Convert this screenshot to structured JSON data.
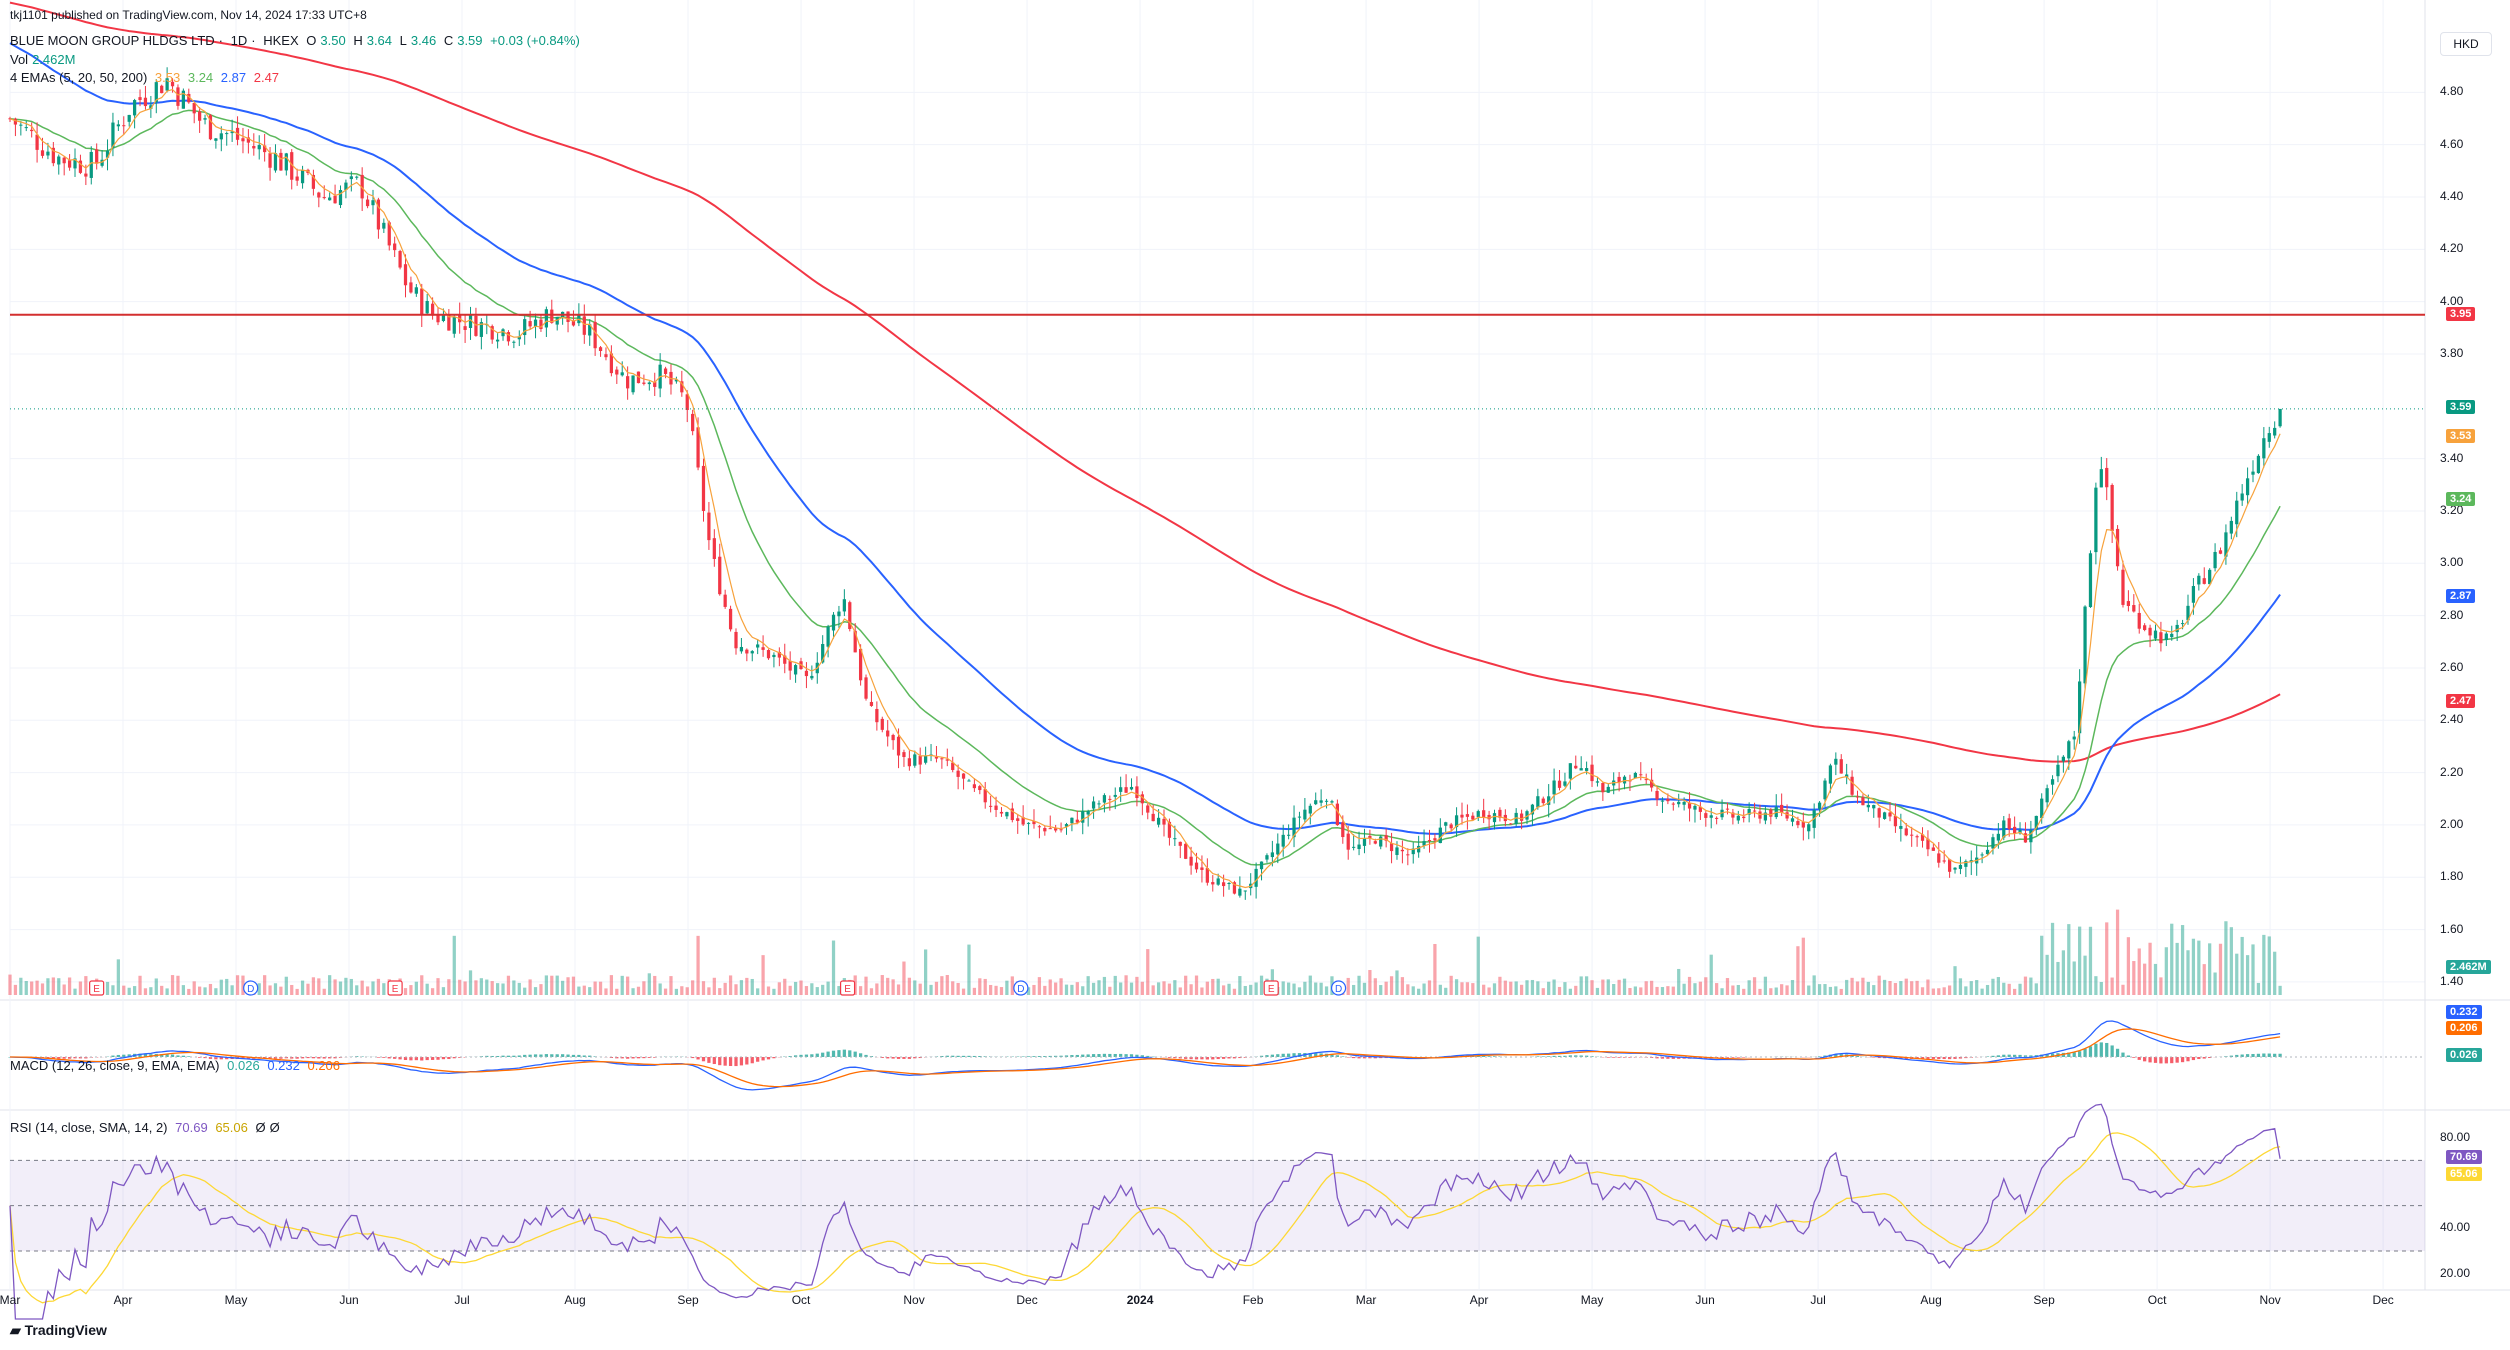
{
  "header": {
    "publisher": "tkj1101 published on TradingView.com, Nov 14, 2024 17:33 UTC+8",
    "symbol": "BLUE MOON GROUP HLDGS LTD",
    "interval": "1D",
    "exchange": "HKEX",
    "ohlc": {
      "o_label": "O",
      "o": "3.50",
      "h_label": "H",
      "h": "3.64",
      "l_label": "L",
      "l": "3.46",
      "c_label": "C",
      "c": "3.59",
      "change": "+0.03 (+0.84%)"
    },
    "vol_label": "Vol",
    "vol_value": "2.462M",
    "emas_label": "4 EMAs (5, 20, 50, 200)",
    "emas_values": [
      "3.53",
      "3.24",
      "2.87",
      "2.47"
    ]
  },
  "currency": "HKD",
  "colors": {
    "up": "#089981",
    "down": "#f23645",
    "ema5": "#f7a23c",
    "ema20": "#5cb85c",
    "ema50": "#2962ff",
    "ema200": "#f23645",
    "hline": "#d32f2f",
    "macd": "#2962ff",
    "signal": "#ff6d00",
    "rsi": "#7e57c2",
    "rsi_ma": "#fdd835"
  },
  "price_axis": [
    "4.80",
    "4.60",
    "4.40",
    "4.20",
    "4.00",
    "3.80",
    "3.40",
    "3.20",
    "3.00",
    "2.80",
    "2.60",
    "2.40",
    "2.20",
    "2.00",
    "1.80",
    "1.60",
    "1.40"
  ],
  "price_tags": {
    "hline": "3.95",
    "last": "3.59",
    "ema5": "3.53",
    "ema20": "3.24",
    "ema50": "2.87",
    "ema200": "2.47",
    "volume": "2.462M"
  },
  "macd": {
    "label": "MACD (12, 26, close, 9, EMA, EMA)",
    "v1": "0.026",
    "v2": "0.232",
    "v3": "0.206",
    "tags": [
      "0.232",
      "0.206",
      "0.026"
    ]
  },
  "rsi": {
    "label": "RSI (14, close, SMA, 14, 2)",
    "v1": "70.69",
    "v2": "65.06",
    "v3": "Ø",
    "v4": "Ø",
    "axis": [
      "80.00",
      "40.00",
      "20.00"
    ],
    "tags": [
      "70.69",
      "65.06"
    ]
  },
  "x_axis": [
    "Mar",
    "Apr",
    "May",
    "Jun",
    "Jul",
    "Aug",
    "Sep",
    "Oct",
    "Nov",
    "Dec",
    "2024",
    "Feb",
    "Mar",
    "Apr",
    "May",
    "Jun",
    "Jul",
    "Aug",
    "Sep",
    "Oct",
    "Nov",
    "Dec"
  ],
  "events": [
    "E",
    "D",
    "E",
    "E",
    "D",
    "E",
    "D"
  ],
  "brand": "TradingView",
  "chart_data": {
    "type": "candlestick",
    "title": "BLUE MOON GROUP HLDGS LTD · 1D · HKEX",
    "ylim": [
      1.35,
      5.0
    ],
    "horizontal_line": 3.95,
    "last_close": 3.59,
    "price_path": [
      {
        "t": 0,
        "c": 4.7
      },
      {
        "t": 0.02,
        "c": 4.55
      },
      {
        "t": 0.035,
        "c": 4.52
      },
      {
        "t": 0.05,
        "c": 4.75
      },
      {
        "t": 0.065,
        "c": 4.85
      },
      {
        "t": 0.08,
        "c": 4.68
      },
      {
        "t": 0.095,
        "c": 4.62
      },
      {
        "t": 0.11,
        "c": 4.55
      },
      {
        "t": 0.13,
        "c": 4.4
      },
      {
        "t": 0.145,
        "c": 4.45
      },
      {
        "t": 0.165,
        "c": 4.05
      },
      {
        "t": 0.175,
        "c": 3.95
      },
      {
        "t": 0.19,
        "c": 3.92
      },
      {
        "t": 0.21,
        "c": 3.88
      },
      {
        "t": 0.225,
        "c": 3.96
      },
      {
        "t": 0.24,
        "c": 3.88
      },
      {
        "t": 0.255,
        "c": 3.7
      },
      {
        "t": 0.27,
        "c": 3.72
      },
      {
        "t": 0.28,
        "c": 3.62
      },
      {
        "t": 0.29,
        "c": 3.05
      },
      {
        "t": 0.3,
        "c": 2.7
      },
      {
        "t": 0.315,
        "c": 2.65
      },
      {
        "t": 0.33,
        "c": 2.55
      },
      {
        "t": 0.345,
        "c": 2.88
      },
      {
        "t": 0.355,
        "c": 2.45
      },
      {
        "t": 0.37,
        "c": 2.25
      },
      {
        "t": 0.385,
        "c": 2.25
      },
      {
        "t": 0.4,
        "c": 2.12
      },
      {
        "t": 0.42,
        "c": 2.0
      },
      {
        "t": 0.435,
        "c": 1.98
      },
      {
        "t": 0.45,
        "c": 2.08
      },
      {
        "t": 0.465,
        "c": 2.15
      },
      {
        "t": 0.48,
        "c": 1.95
      },
      {
        "t": 0.495,
        "c": 1.8
      },
      {
        "t": 0.51,
        "c": 1.74
      },
      {
        "t": 0.52,
        "c": 1.86
      },
      {
        "t": 0.535,
        "c": 2.05
      },
      {
        "t": 0.545,
        "c": 2.12
      },
      {
        "t": 0.555,
        "c": 1.9
      },
      {
        "t": 0.565,
        "c": 1.95
      },
      {
        "t": 0.58,
        "c": 1.88
      },
      {
        "t": 0.595,
        "c": 2.0
      },
      {
        "t": 0.61,
        "c": 2.05
      },
      {
        "t": 0.625,
        "c": 2.02
      },
      {
        "t": 0.64,
        "c": 2.15
      },
      {
        "t": 0.65,
        "c": 2.25
      },
      {
        "t": 0.66,
        "c": 2.12
      },
      {
        "t": 0.67,
        "c": 2.2
      },
      {
        "t": 0.685,
        "c": 2.1
      },
      {
        "t": 0.7,
        "c": 2.05
      },
      {
        "t": 0.715,
        "c": 2.03
      },
      {
        "t": 0.73,
        "c": 2.05
      },
      {
        "t": 0.745,
        "c": 2.0
      },
      {
        "t": 0.755,
        "c": 2.25
      },
      {
        "t": 0.765,
        "c": 2.1
      },
      {
        "t": 0.78,
        "c": 2.0
      },
      {
        "t": 0.795,
        "c": 1.9
      },
      {
        "t": 0.805,
        "c": 1.82
      },
      {
        "t": 0.815,
        "c": 1.88
      },
      {
        "t": 0.825,
        "c": 2.0
      },
      {
        "t": 0.835,
        "c": 1.95
      },
      {
        "t": 0.845,
        "c": 2.15
      },
      {
        "t": 0.855,
        "c": 2.35
      },
      {
        "t": 0.865,
        "c": 3.45
      },
      {
        "t": 0.875,
        "c": 2.85
      },
      {
        "t": 0.885,
        "c": 2.75
      },
      {
        "t": 0.895,
        "c": 2.7
      },
      {
        "t": 0.905,
        "c": 2.9
      },
      {
        "t": 0.915,
        "c": 3.05
      },
      {
        "t": 0.925,
        "c": 3.3
      },
      {
        "t": 0.935,
        "c": 3.52
      },
      {
        "t": 0.94,
        "c": 3.59
      }
    ],
    "emas": {
      "ema5": 3.53,
      "ema20": 3.24,
      "ema50": 2.87,
      "ema200": 2.47
    },
    "macd_last": {
      "hist": 0.026,
      "macd": 0.232,
      "signal": 0.206
    },
    "rsi_last": {
      "rsi": 70.69,
      "ma": 65.06
    },
    "rsi_ylim": [
      15,
      90
    ]
  }
}
